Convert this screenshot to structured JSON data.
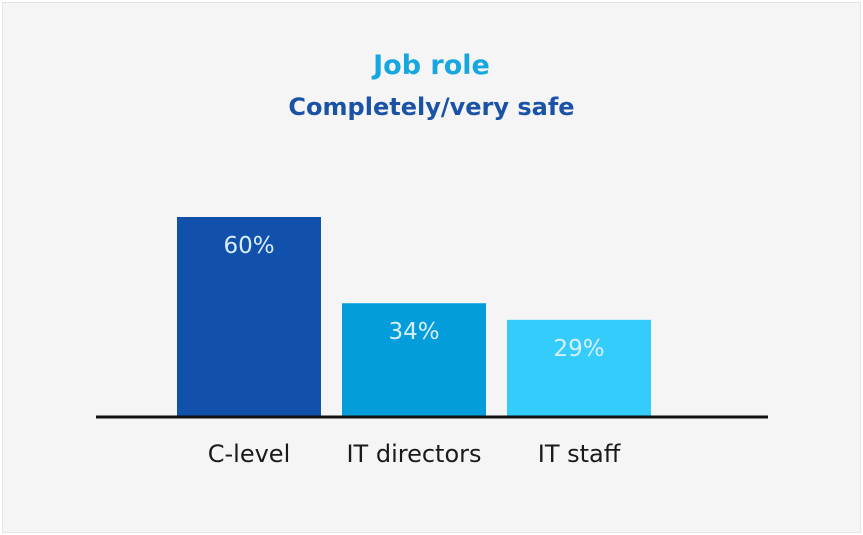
{
  "chart_data": {
    "type": "bar",
    "title": "Job role",
    "subtitle": "Completely/very safe",
    "categories": [
      "C-level",
      "IT directors",
      "IT staff"
    ],
    "values": [
      60,
      34,
      29
    ],
    "value_labels": [
      "60%",
      "34%",
      "29%"
    ],
    "ylim": [
      0,
      60
    ],
    "grid": false,
    "legend": "none"
  },
  "colors": {
    "title": "#16a7e0",
    "subtitle": "#1a52a6",
    "bars": [
      "#1150ab",
      "#049ddc",
      "#33ccfb"
    ],
    "value_label": "#d9eefb",
    "axis": "#111111",
    "category_label": "#1a1a1a"
  }
}
